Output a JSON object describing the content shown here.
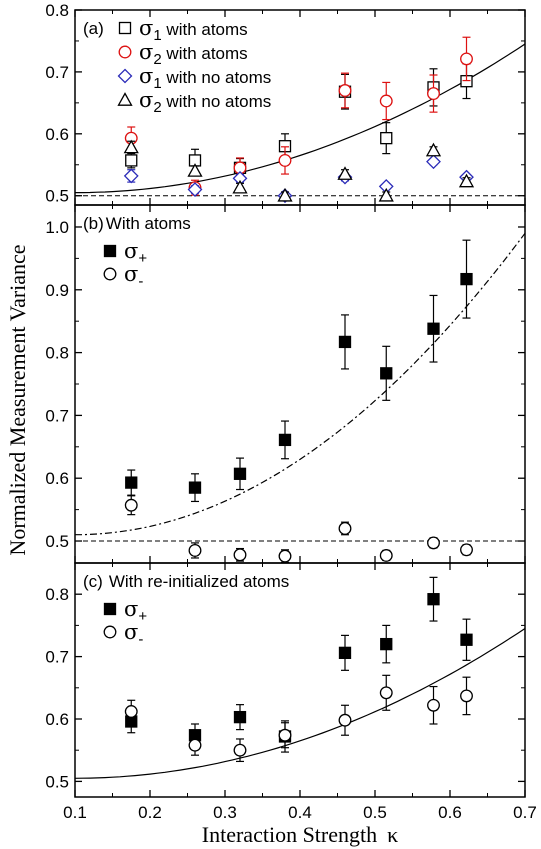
{
  "chart_data": {
    "type": "scatter",
    "ylabel": "Normalized Measurement Variance",
    "xlabel": "Interaction Strength",
    "xlabel_symbol": "κ",
    "xlim": [
      0.1,
      0.7
    ],
    "x_ticks": [
      "0.1",
      "0.2",
      "0.3",
      "0.4",
      "0.5",
      "0.6",
      "0.7"
    ],
    "panels": [
      {
        "label": "(a)",
        "title": "",
        "ylim": [
          0.485,
          0.8
        ],
        "y_ticks": [
          {
            "value": 0.5,
            "label": "0.5"
          },
          {
            "value": 0.6,
            "label": "0.6"
          },
          {
            "value": 0.7,
            "label": "0.7"
          },
          {
            "value": 0.8,
            "label": "0.8"
          }
        ],
        "legend": {
          "position": "top-left",
          "entries": [
            {
              "symbol": "σ",
              "sub": "1",
              "text": " with atoms",
              "marker": "open-square",
              "color": "#000000"
            },
            {
              "symbol": "σ",
              "sub": "2",
              "text": " with atoms",
              "marker": "open-circle",
              "color": "#dd1111"
            },
            {
              "symbol": "σ",
              "sub": "1",
              "text": " with no atoms",
              "marker": "open-diamond",
              "color": "#2b2bb8"
            },
            {
              "symbol": "σ",
              "sub": "2",
              "text": " with no atoms",
              "marker": "open-triangle",
              "color": "#000000"
            }
          ]
        },
        "series": [
          {
            "name": "σ1 with atoms",
            "marker": "open-square",
            "color": "#000000",
            "x": [
              0.175,
              0.26,
              0.32,
              0.38,
              0.46,
              0.515,
              0.578,
              0.622
            ],
            "y": [
              0.557,
              0.557,
              0.545,
              0.58,
              0.668,
              0.593,
              0.675,
              0.685
            ],
            "err": [
              0.012,
              0.018,
              0.015,
              0.02,
              0.028,
              0.025,
              0.03,
              0.028
            ]
          },
          {
            "name": "σ2 with atoms",
            "marker": "open-circle",
            "color": "#dd1111",
            "x": [
              0.175,
              0.26,
              0.32,
              0.38,
              0.46,
              0.515,
              0.578,
              0.622
            ],
            "y": [
              0.593,
              0.513,
              0.545,
              0.557,
              0.67,
              0.653,
              0.665,
              0.721
            ],
            "err": [
              0.018,
              0.012,
              0.016,
              0.022,
              0.028,
              0.03,
              0.03,
              0.035
            ]
          },
          {
            "name": "σ1 with no atoms",
            "marker": "open-diamond",
            "color": "#2b2bb8",
            "x": [
              0.175,
              0.26,
              0.32,
              0.38,
              0.46,
              0.515,
              0.578,
              0.622
            ],
            "y": [
              0.532,
              0.51,
              0.528,
              0.5,
              0.53,
              0.515,
              0.555,
              0.53
            ],
            "err": [
              0.01,
              0.006,
              0.006,
              0.006,
              0.006,
              0.004,
              0.005,
              0.004
            ]
          },
          {
            "name": "σ2 with no atoms",
            "marker": "open-triangle",
            "color": "#000000",
            "x": [
              0.175,
              0.26,
              0.32,
              0.38,
              0.46,
              0.515,
              0.578,
              0.622
            ],
            "y": [
              0.578,
              0.54,
              0.513,
              0.5,
              0.535,
              0.5,
              0.573,
              0.523
            ],
            "err": [
              0.01,
              0.008,
              0.007,
              0.006,
              0.007,
              0.006,
              0.006,
              0.006
            ]
          }
        ],
        "fit": {
          "style": "solid",
          "y_at_xmin": 0.505,
          "y_at_xmax": 0.745
        },
        "reference": {
          "style": "dashed",
          "y": 0.5
        }
      },
      {
        "label": "(b)",
        "title": "With atoms",
        "ylim": [
          0.465,
          1.035
        ],
        "y_ticks": [
          {
            "value": 0.5,
            "label": "0.5"
          },
          {
            "value": 0.6,
            "label": "0.6"
          },
          {
            "value": 0.7,
            "label": "0.7"
          },
          {
            "value": 0.8,
            "label": "0.8"
          },
          {
            "value": 0.9,
            "label": "0.9"
          },
          {
            "value": 1.0,
            "label": "1.0"
          }
        ],
        "legend": {
          "position": "top-left",
          "entries": [
            {
              "symbol": "σ",
              "sub": "+",
              "text": "",
              "marker": "filled-square",
              "color": "#000000"
            },
            {
              "symbol": "σ",
              "sub": "-",
              "text": "",
              "marker": "open-circle",
              "color": "#000000"
            }
          ]
        },
        "series": [
          {
            "name": "σ+",
            "marker": "filled-square",
            "color": "#000000",
            "x": [
              0.175,
              0.26,
              0.32,
              0.38,
              0.46,
              0.515,
              0.578,
              0.622
            ],
            "y": [
              0.593,
              0.585,
              0.607,
              0.661,
              0.817,
              0.767,
              0.838,
              0.917
            ],
            "err": [
              0.02,
              0.022,
              0.025,
              0.03,
              0.043,
              0.043,
              0.053,
              0.062
            ]
          },
          {
            "name": "σ-",
            "marker": "open-circle",
            "color": "#000000",
            "x": [
              0.175,
              0.26,
              0.32,
              0.38,
              0.46,
              0.515,
              0.578,
              0.622
            ],
            "y": [
              0.557,
              0.485,
              0.478,
              0.476,
              0.52,
              0.477,
              0.497,
              0.486
            ],
            "err": [
              0.015,
              0.012,
              0.01,
              0.01,
              0.01,
              0.008,
              0.008,
              0.008
            ]
          }
        ],
        "fit": {
          "style": "dashdot",
          "y_at_xmin": 0.51,
          "y_at_xmax": 0.99
        },
        "reference": {
          "style": "dashed",
          "y": 0.5
        }
      },
      {
        "label": "(c)",
        "title": "With re-initialized atoms",
        "ylim": [
          0.475,
          0.85
        ],
        "y_ticks": [
          {
            "value": 0.5,
            "label": "0.5"
          },
          {
            "value": 0.6,
            "label": "0.6"
          },
          {
            "value": 0.7,
            "label": "0.7"
          },
          {
            "value": 0.8,
            "label": "0.8"
          }
        ],
        "legend": {
          "position": "top-left",
          "entries": [
            {
              "symbol": "σ",
              "sub": "+",
              "text": "",
              "marker": "filled-square",
              "color": "#000000"
            },
            {
              "symbol": "σ",
              "sub": "-",
              "text": "",
              "marker": "open-circle",
              "color": "#000000"
            }
          ]
        },
        "series": [
          {
            "name": "σ+",
            "marker": "filled-square",
            "color": "#000000",
            "x": [
              0.175,
              0.26,
              0.32,
              0.38,
              0.46,
              0.515,
              0.578,
              0.622
            ],
            "y": [
              0.596,
              0.574,
              0.603,
              0.572,
              0.706,
              0.72,
              0.792,
              0.727
            ],
            "err": [
              0.018,
              0.018,
              0.02,
              0.025,
              0.028,
              0.03,
              0.035,
              0.033
            ]
          },
          {
            "name": "σ-",
            "marker": "open-circle",
            "color": "#000000",
            "x": [
              0.175,
              0.26,
              0.32,
              0.38,
              0.46,
              0.515,
              0.578,
              0.622
            ],
            "y": [
              0.612,
              0.558,
              0.55,
              0.574,
              0.598,
              0.642,
              0.622,
              0.637
            ],
            "err": [
              0.018,
              0.016,
              0.018,
              0.02,
              0.024,
              0.028,
              0.03,
              0.03
            ]
          }
        ],
        "fit": {
          "style": "solid",
          "y_at_xmin": 0.505,
          "y_at_xmax": 0.745
        },
        "reference": null
      }
    ]
  }
}
